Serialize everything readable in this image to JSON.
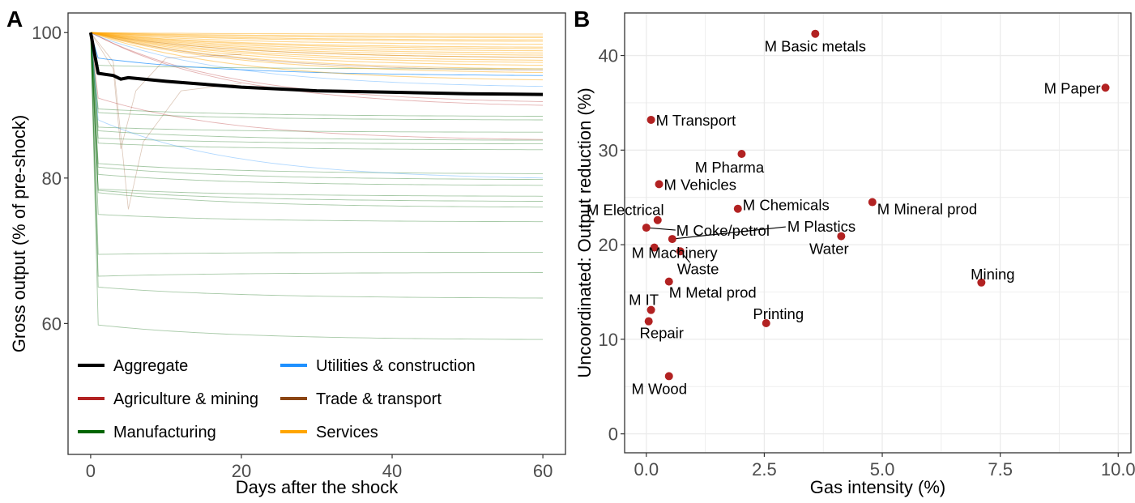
{
  "chart_data": [
    {
      "panel": "A",
      "type": "line",
      "title": "",
      "xlabel": "Days after the shock",
      "ylabel": "Gross output (% of pre-shock)",
      "xlim": [
        -3,
        63
      ],
      "ylim": [
        42,
        102.7
      ],
      "xticks": [
        0,
        20,
        40,
        60
      ],
      "yticks": [
        60,
        80,
        100
      ],
      "grid": false,
      "legend": {
        "placement": "bottom-left",
        "entries": [
          {
            "label": "Aggregate",
            "color": "#000000"
          },
          {
            "label": "Utilities & construction",
            "color": "#1e90ff"
          },
          {
            "label": "Agriculture & mining",
            "color": "#b22222"
          },
          {
            "label": "Trade & transport",
            "color": "#8b4513"
          },
          {
            "label": "Manufacturing",
            "color": "#006400"
          },
          {
            "label": "Services",
            "color": "#ffa500"
          }
        ]
      },
      "aggregate": {
        "name": "Aggregate",
        "x": [
          0,
          1,
          3,
          4,
          5,
          10,
          20,
          30,
          40,
          50,
          60
        ],
        "y": [
          100,
          94.4,
          94.1,
          93.6,
          93.8,
          93.3,
          92.5,
          92.0,
          91.8,
          91.6,
          91.5
        ]
      },
      "sector_series": {
        "Utilities & construction": [
          {
            "start": 96.5,
            "end": 94.1,
            "drop_day": 1
          },
          {
            "start": 99.5,
            "end": 92.6,
            "drop_day": 1
          },
          {
            "start": 88.0,
            "end": 80.0,
            "drop_day": 1
          }
        ],
        "Agriculture & mining": [
          {
            "start": 99.5,
            "end": 90.5,
            "drop_day": 1
          },
          {
            "start": 99.5,
            "end": 90.0,
            "drop_day": 1
          },
          {
            "start": 91.0,
            "end": 85.3,
            "drop_day": 1
          }
        ],
        "Trade & transport": [
          {
            "start": 99.8,
            "end": 94.8,
            "drop_day": 1
          },
          {
            "start": 99.8,
            "end": 96.6,
            "drop_day": 1
          }
        ],
        "Manufacturing": [
          {
            "start": 95.5,
            "end": 95.0,
            "drop_day": 1
          },
          {
            "start": 89.5,
            "end": 88.5,
            "drop_day": 1
          },
          {
            "start": 89.0,
            "end": 88.0,
            "drop_day": 1
          },
          {
            "start": 87.0,
            "end": 86.3,
            "drop_day": 1
          },
          {
            "start": 86.5,
            "end": 85.2,
            "drop_day": 1
          },
          {
            "start": 85.5,
            "end": 84.7,
            "drop_day": 1
          },
          {
            "start": 84.8,
            "end": 83.9,
            "drop_day": 1
          },
          {
            "start": 82.0,
            "end": 80.6,
            "drop_day": 1
          },
          {
            "start": 81.5,
            "end": 79.8,
            "drop_day": 1
          },
          {
            "start": 80.5,
            "end": 79.0,
            "drop_day": 1
          },
          {
            "start": 78.5,
            "end": 77.5,
            "drop_day": 1
          },
          {
            "start": 78.3,
            "end": 76.8,
            "drop_day": 1
          },
          {
            "start": 78.0,
            "end": 76.0,
            "drop_day": 1
          },
          {
            "start": 75.0,
            "end": 74.0,
            "drop_day": 1
          },
          {
            "start": 69.5,
            "end": 69.8,
            "drop_day": 1
          },
          {
            "start": 66.5,
            "end": 67.0,
            "drop_day": 1
          },
          {
            "start": 65.0,
            "end": 63.5,
            "drop_day": 1
          },
          {
            "start": 59.8,
            "end": 57.8,
            "drop_day": 1
          }
        ],
        "Services": [
          {
            "start": 100,
            "end": 99.8
          },
          {
            "start": 100,
            "end": 99.5
          },
          {
            "start": 100,
            "end": 99.3
          },
          {
            "start": 100,
            "end": 99.0
          },
          {
            "start": 100,
            "end": 98.8
          },
          {
            "start": 100,
            "end": 98.4
          },
          {
            "start": 100,
            "end": 98.0
          },
          {
            "start": 100,
            "end": 97.8
          },
          {
            "start": 100,
            "end": 97.5
          },
          {
            "start": 100,
            "end": 97.2
          },
          {
            "start": 100,
            "end": 96.9
          },
          {
            "start": 100,
            "end": 96.6
          },
          {
            "start": 100,
            "end": 96.2
          },
          {
            "start": 100,
            "end": 95.9
          },
          {
            "start": 100,
            "end": 95.5
          },
          {
            "start": 100,
            "end": 95.0
          },
          {
            "start": 100,
            "end": 94.5
          },
          {
            "start": 100,
            "end": 93.5
          }
        ]
      },
      "dip_series": [
        {
          "group": "Trade & transport",
          "x": [
            0,
            3,
            4,
            6,
            10,
            20
          ],
          "y": [
            100,
            95,
            84,
            92,
            96.5,
            97.0
          ]
        },
        {
          "group": "Trade & transport",
          "x": [
            0,
            3,
            5,
            7,
            12,
            20
          ],
          "y": [
            100,
            96,
            75.7,
            85,
            92,
            93.0
          ]
        }
      ]
    },
    {
      "panel": "B",
      "type": "scatter",
      "title": "",
      "xlabel": "Gas intensity (%)",
      "ylabel": "Uncoordinated: Output reduction (%)",
      "xlim": [
        -0.46,
        10.27
      ],
      "ylim": [
        -2.0,
        44.5
      ],
      "xticks": [
        "0.0",
        "2.5",
        "5.0",
        "7.5",
        "10.0"
      ],
      "xtick_values": [
        0,
        2.5,
        5,
        7.5,
        10
      ],
      "yticks": [
        0,
        10,
        20,
        30,
        40
      ],
      "grid": true,
      "point_color": "#b22222",
      "points": [
        {
          "label": "M Basic metals",
          "x": 3.58,
          "y": 42.3
        },
        {
          "label": "M Paper",
          "x": 9.73,
          "y": 36.6
        },
        {
          "label": "M Transport",
          "x": 0.1,
          "y": 33.2
        },
        {
          "label": "M Pharma",
          "x": 2.02,
          "y": 29.6
        },
        {
          "label": "M Vehicles",
          "x": 0.27,
          "y": 26.4
        },
        {
          "label": "M Mineral prod",
          "x": 4.79,
          "y": 24.5
        },
        {
          "label": "M Chemicals",
          "x": 1.94,
          "y": 23.8
        },
        {
          "label": "M Electrical",
          "x": 0.24,
          "y": 22.6
        },
        {
          "label": "M Coke/petrol",
          "x": 0.0,
          "y": 21.8
        },
        {
          "label": "Water",
          "x": 4.13,
          "y": 20.9
        },
        {
          "label": "M Plastics",
          "x": 0.55,
          "y": 20.6
        },
        {
          "label": "M Machinery",
          "x": 0.17,
          "y": 19.7
        },
        {
          "label": "Waste",
          "x": 0.72,
          "y": 19.3
        },
        {
          "label": "M Metal prod",
          "x": 0.48,
          "y": 16.1
        },
        {
          "label": "Mining",
          "x": 7.1,
          "y": 16.0
        },
        {
          "label": "M IT",
          "x": 0.1,
          "y": 13.1
        },
        {
          "label": "Repair",
          "x": 0.05,
          "y": 11.9
        },
        {
          "label": "Printing",
          "x": 2.54,
          "y": 11.7
        },
        {
          "label": "M Wood",
          "x": 0.48,
          "y": 6.1
        }
      ]
    }
  ],
  "panels": {
    "a_label": "A",
    "b_label": "B"
  }
}
